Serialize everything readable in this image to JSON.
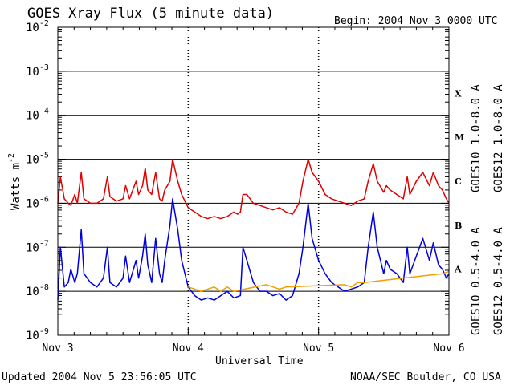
{
  "colors": {
    "background": "#ffffff",
    "axis": "#000000",
    "goes10_long": "#6a2c91",
    "goes12_long": "#e00000",
    "goes10_short": "#f0a000",
    "goes12_short": "#0000e0"
  },
  "chart_data": {
    "type": "line",
    "title": "GOES Xray Flux (5 minute data)",
    "begin_label": "Begin:  2004 Nov 3 0000 UTC",
    "ylabel": "Watts m",
    "ylabel_sup": "-2",
    "xlabel": "Universal Time",
    "yscale": "log",
    "ylim_exp": [
      -9,
      -2
    ],
    "y_ticks": [
      {
        "base": "10",
        "exp": "-9"
      },
      {
        "base": "10",
        "exp": "-8"
      },
      {
        "base": "10",
        "exp": "-7"
      },
      {
        "base": "10",
        "exp": "-6"
      },
      {
        "base": "10",
        "exp": "-5"
      },
      {
        "base": "10",
        "exp": "-4"
      },
      {
        "base": "10",
        "exp": "-3"
      },
      {
        "base": "10",
        "exp": "-2"
      }
    ],
    "x_ticks": [
      "Nov 3",
      "Nov 4",
      "Nov 5",
      "Nov 6"
    ],
    "xlim_days": [
      0,
      3
    ],
    "flare_classes": [
      {
        "label": "A",
        "exp": -7.5
      },
      {
        "label": "B",
        "exp": -6.5
      },
      {
        "label": "C",
        "exp": -5.5
      },
      {
        "label": "M",
        "exp": -4.5
      },
      {
        "label": "X",
        "exp": -3.5
      }
    ],
    "legend_right_top": [
      {
        "text": "GOES10 1.0-8.0 A",
        "color_key": "goes10_long"
      },
      {
        "text": "GOES12 1.0-8.0 A",
        "color_key": "goes12_long"
      }
    ],
    "legend_right_bottom": [
      {
        "text": "GOES10 0.5-4.0 A",
        "color_key": "goes10_short"
      },
      {
        "text": "GOES12 0.5-4.0 A",
        "color_key": "goes12_short"
      }
    ],
    "series": [
      {
        "name": "GOES12 1.0-8.0 A",
        "color_key": "goes12_long",
        "points": [
          [
            0.0,
            -6.0
          ],
          [
            0.02,
            -5.4
          ],
          [
            0.05,
            -5.9
          ],
          [
            0.08,
            -6.0
          ],
          [
            0.1,
            -6.05
          ],
          [
            0.13,
            -5.8
          ],
          [
            0.15,
            -6.0
          ],
          [
            0.18,
            -5.3
          ],
          [
            0.2,
            -5.9
          ],
          [
            0.25,
            -6.0
          ],
          [
            0.3,
            -6.0
          ],
          [
            0.35,
            -5.9
          ],
          [
            0.38,
            -5.4
          ],
          [
            0.4,
            -5.85
          ],
          [
            0.45,
            -5.95
          ],
          [
            0.5,
            -5.9
          ],
          [
            0.52,
            -5.6
          ],
          [
            0.55,
            -5.9
          ],
          [
            0.6,
            -5.5
          ],
          [
            0.62,
            -5.8
          ],
          [
            0.65,
            -5.6
          ],
          [
            0.67,
            -5.2
          ],
          [
            0.69,
            -5.7
          ],
          [
            0.72,
            -5.8
          ],
          [
            0.75,
            -5.3
          ],
          [
            0.78,
            -5.9
          ],
          [
            0.8,
            -5.95
          ],
          [
            0.82,
            -5.7
          ],
          [
            0.86,
            -5.5
          ],
          [
            0.88,
            -5.0
          ],
          [
            0.92,
            -5.5
          ],
          [
            0.95,
            -5.8
          ],
          [
            1.0,
            -6.1
          ],
          [
            1.05,
            -6.2
          ],
          [
            1.1,
            -6.3
          ],
          [
            1.15,
            -6.35
          ],
          [
            1.2,
            -6.3
          ],
          [
            1.25,
            -6.35
          ],
          [
            1.3,
            -6.3
          ],
          [
            1.35,
            -6.2
          ],
          [
            1.38,
            -6.25
          ],
          [
            1.4,
            -6.2
          ],
          [
            1.42,
            -5.8
          ],
          [
            1.45,
            -5.8
          ],
          [
            1.5,
            -6.0
          ],
          [
            1.55,
            -6.05
          ],
          [
            1.6,
            -6.1
          ],
          [
            1.65,
            -6.15
          ],
          [
            1.7,
            -6.1
          ],
          [
            1.75,
            -6.2
          ],
          [
            1.8,
            -6.25
          ],
          [
            1.85,
            -6.0
          ],
          [
            1.88,
            -5.5
          ],
          [
            1.92,
            -5.0
          ],
          [
            1.95,
            -5.3
          ],
          [
            2.0,
            -5.5
          ],
          [
            2.05,
            -5.8
          ],
          [
            2.1,
            -5.9
          ],
          [
            2.15,
            -5.95
          ],
          [
            2.2,
            -6.0
          ],
          [
            2.25,
            -6.05
          ],
          [
            2.3,
            -5.95
          ],
          [
            2.35,
            -5.9
          ],
          [
            2.38,
            -5.5
          ],
          [
            2.42,
            -5.1
          ],
          [
            2.45,
            -5.5
          ],
          [
            2.5,
            -5.75
          ],
          [
            2.52,
            -5.6
          ],
          [
            2.55,
            -5.7
          ],
          [
            2.6,
            -5.8
          ],
          [
            2.65,
            -5.9
          ],
          [
            2.68,
            -5.4
          ],
          [
            2.7,
            -5.8
          ],
          [
            2.75,
            -5.5
          ],
          [
            2.8,
            -5.3
          ],
          [
            2.85,
            -5.6
          ],
          [
            2.88,
            -5.3
          ],
          [
            2.92,
            -5.6
          ],
          [
            2.95,
            -5.7
          ],
          [
            2.98,
            -5.9
          ],
          [
            3.0,
            -6.0
          ]
        ]
      },
      {
        "name": "GOES12 0.5-4.0 A",
        "color_key": "goes12_short",
        "points": [
          [
            0.0,
            -8.2
          ],
          [
            0.02,
            -7.0
          ],
          [
            0.05,
            -7.9
          ],
          [
            0.08,
            -7.8
          ],
          [
            0.1,
            -7.5
          ],
          [
            0.13,
            -7.8
          ],
          [
            0.15,
            -7.6
          ],
          [
            0.18,
            -6.6
          ],
          [
            0.2,
            -7.6
          ],
          [
            0.25,
            -7.8
          ],
          [
            0.3,
            -7.9
          ],
          [
            0.35,
            -7.7
          ],
          [
            0.38,
            -7.0
          ],
          [
            0.4,
            -7.8
          ],
          [
            0.45,
            -7.9
          ],
          [
            0.5,
            -7.7
          ],
          [
            0.52,
            -7.2
          ],
          [
            0.55,
            -7.8
          ],
          [
            0.6,
            -7.3
          ],
          [
            0.62,
            -7.7
          ],
          [
            0.65,
            -7.2
          ],
          [
            0.67,
            -6.7
          ],
          [
            0.69,
            -7.4
          ],
          [
            0.72,
            -7.8
          ],
          [
            0.75,
            -6.8
          ],
          [
            0.78,
            -7.6
          ],
          [
            0.8,
            -7.8
          ],
          [
            0.82,
            -7.3
          ],
          [
            0.86,
            -6.5
          ],
          [
            0.88,
            -5.9
          ],
          [
            0.92,
            -6.6
          ],
          [
            0.95,
            -7.3
          ],
          [
            1.0,
            -7.9
          ],
          [
            1.05,
            -8.1
          ],
          [
            1.1,
            -8.2
          ],
          [
            1.15,
            -8.15
          ],
          [
            1.2,
            -8.2
          ],
          [
            1.25,
            -8.1
          ],
          [
            1.3,
            -8.0
          ],
          [
            1.35,
            -8.15
          ],
          [
            1.4,
            -8.1
          ],
          [
            1.42,
            -7.0
          ],
          [
            1.45,
            -7.3
          ],
          [
            1.5,
            -7.8
          ],
          [
            1.55,
            -8.0
          ],
          [
            1.6,
            -8.0
          ],
          [
            1.65,
            -8.1
          ],
          [
            1.7,
            -8.05
          ],
          [
            1.75,
            -8.2
          ],
          [
            1.8,
            -8.1
          ],
          [
            1.85,
            -7.6
          ],
          [
            1.88,
            -7.0
          ],
          [
            1.92,
            -6.0
          ],
          [
            1.95,
            -6.8
          ],
          [
            2.0,
            -7.3
          ],
          [
            2.05,
            -7.6
          ],
          [
            2.1,
            -7.8
          ],
          [
            2.15,
            -7.9
          ],
          [
            2.2,
            -8.0
          ],
          [
            2.25,
            -7.95
          ],
          [
            2.3,
            -7.9
          ],
          [
            2.35,
            -7.8
          ],
          [
            2.38,
            -7.0
          ],
          [
            2.42,
            -6.2
          ],
          [
            2.45,
            -7.0
          ],
          [
            2.5,
            -7.6
          ],
          [
            2.52,
            -7.3
          ],
          [
            2.55,
            -7.5
          ],
          [
            2.6,
            -7.6
          ],
          [
            2.65,
            -7.8
          ],
          [
            2.68,
            -7.0
          ],
          [
            2.7,
            -7.6
          ],
          [
            2.75,
            -7.2
          ],
          [
            2.8,
            -6.8
          ],
          [
            2.85,
            -7.3
          ],
          [
            2.88,
            -6.9
          ],
          [
            2.92,
            -7.4
          ],
          [
            2.95,
            -7.5
          ],
          [
            2.98,
            -7.7
          ],
          [
            3.0,
            -7.6
          ]
        ]
      },
      {
        "name": "GOES10 0.5-4.0 A",
        "color_key": "goes10_short",
        "points": [
          [
            1.0,
            -7.9
          ],
          [
            1.05,
            -7.95
          ],
          [
            1.1,
            -8.0
          ],
          [
            1.15,
            -7.95
          ],
          [
            1.2,
            -7.9
          ],
          [
            1.25,
            -8.0
          ],
          [
            1.3,
            -7.9
          ],
          [
            1.35,
            -8.0
          ],
          [
            1.6,
            -7.85
          ],
          [
            1.65,
            -7.9
          ],
          [
            1.7,
            -7.95
          ],
          [
            1.75,
            -7.9
          ],
          [
            2.2,
            -7.85
          ],
          [
            2.25,
            -7.9
          ],
          [
            2.3,
            -7.8
          ],
          [
            2.35,
            -7.8
          ],
          [
            2.95,
            -7.6
          ],
          [
            3.0,
            -7.55
          ]
        ]
      }
    ]
  },
  "footer": {
    "updated": "Updated 2004 Nov  5 23:56:05 UTC",
    "credit": "NOAA/SEC Boulder, CO USA"
  }
}
